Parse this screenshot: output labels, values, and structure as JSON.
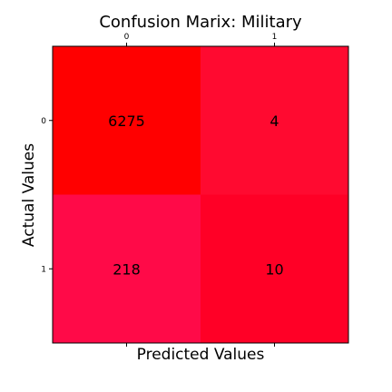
{
  "chart_data": {
    "type": "heatmap",
    "title": "Confusion Marix: Military",
    "xlabel": "Predicted Values",
    "ylabel": "Actual Values",
    "x_categories": [
      "0",
      "1"
    ],
    "y_categories": [
      "0",
      "1"
    ],
    "x_ticks_position": "top",
    "values": [
      [
        6275,
        4
      ],
      [
        218,
        10
      ]
    ],
    "cell_colors": [
      [
        "#ff0000",
        "#ff0a30"
      ],
      [
        "#ff0a48",
        "#ff0026"
      ]
    ],
    "grid": false
  }
}
